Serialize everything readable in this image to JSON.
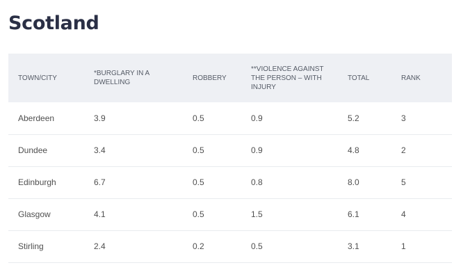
{
  "page": {
    "title": "Scotland"
  },
  "table": {
    "columns": [
      "TOWN/CITY",
      "*BURGLARY IN A DWELLING",
      "ROBBERY",
      "**VIOLENCE AGAINST THE PERSON – WITH INJURY",
      "TOTAL",
      "RANK"
    ],
    "rows": [
      [
        "Aberdeen",
        "3.9",
        "0.5",
        "0.9",
        "5.2",
        "3"
      ],
      [
        "Dundee",
        "3.4",
        "0.5",
        "0.9",
        "4.8",
        "2"
      ],
      [
        "Edinburgh",
        "6.7",
        "0.5",
        "0.8",
        "8.0",
        "5"
      ],
      [
        "Glasgow",
        "4.1",
        "0.5",
        "1.5",
        "6.1",
        "4"
      ],
      [
        "Stirling",
        "2.4",
        "0.2",
        "0.5",
        "3.1",
        "1"
      ]
    ]
  }
}
